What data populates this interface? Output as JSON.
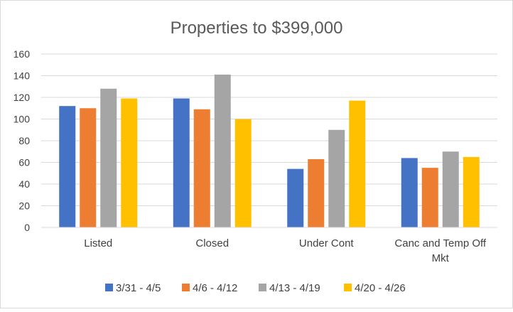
{
  "chart_data": {
    "type": "bar",
    "title": "Properties to $399,000",
    "categories": [
      "Listed",
      "Closed",
      "Under Cont",
      [
        "Canc and Temp Off",
        "Mkt"
      ]
    ],
    "series": [
      {
        "name": "3/31 - 4/5",
        "values": [
          112,
          119,
          54,
          64
        ]
      },
      {
        "name": "4/6 - 4/12",
        "values": [
          110,
          109,
          63,
          55
        ]
      },
      {
        "name": "4/13 - 4/19",
        "values": [
          128,
          141,
          90,
          70
        ]
      },
      {
        "name": "4/20 - 4/26",
        "values": [
          119,
          100,
          117,
          65
        ]
      }
    ],
    "colors": [
      "#4472C4",
      "#ED7D31",
      "#A5A5A5",
      "#FFC000"
    ],
    "ylim": [
      0,
      160
    ],
    "yticks": [
      0,
      20,
      40,
      60,
      80,
      100,
      120,
      140,
      160
    ],
    "grid": true,
    "legend_position": "bottom",
    "xlabel": "",
    "ylabel": ""
  }
}
